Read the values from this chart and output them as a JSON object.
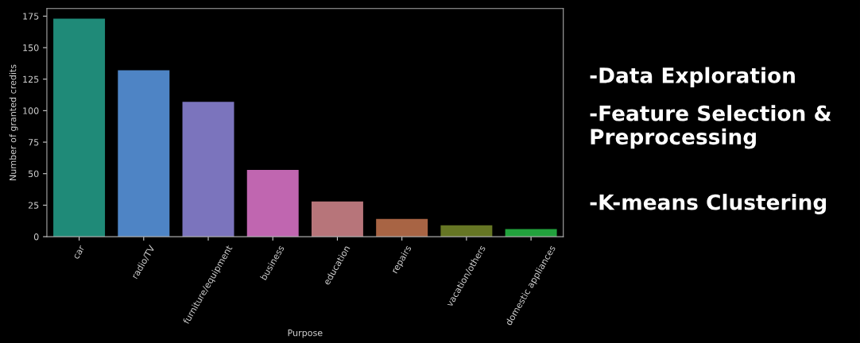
{
  "chart_data": {
    "type": "bar",
    "xlabel": "Purpose",
    "ylabel": "Number of granted credits",
    "categories": [
      "car",
      "radio/TV",
      "furniture/equipment",
      "business",
      "education",
      "repairs",
      "vacation/others",
      "domestic appliances"
    ],
    "values": [
      173,
      132,
      107,
      53,
      28,
      14,
      9,
      6
    ],
    "colors": [
      "#1f8a78",
      "#4e84c5",
      "#7b74bd",
      "#c066b0",
      "#b7757a",
      "#a86444",
      "#667624",
      "#22a23d"
    ],
    "ylim": [
      0,
      181
    ],
    "yticks": [
      0,
      25,
      50,
      75,
      100,
      125,
      150,
      175
    ],
    "grid": false,
    "annotations": [
      "-Data Exploration",
      "-Feature Selection & Preprocessing",
      "-K-means Clustering"
    ]
  }
}
